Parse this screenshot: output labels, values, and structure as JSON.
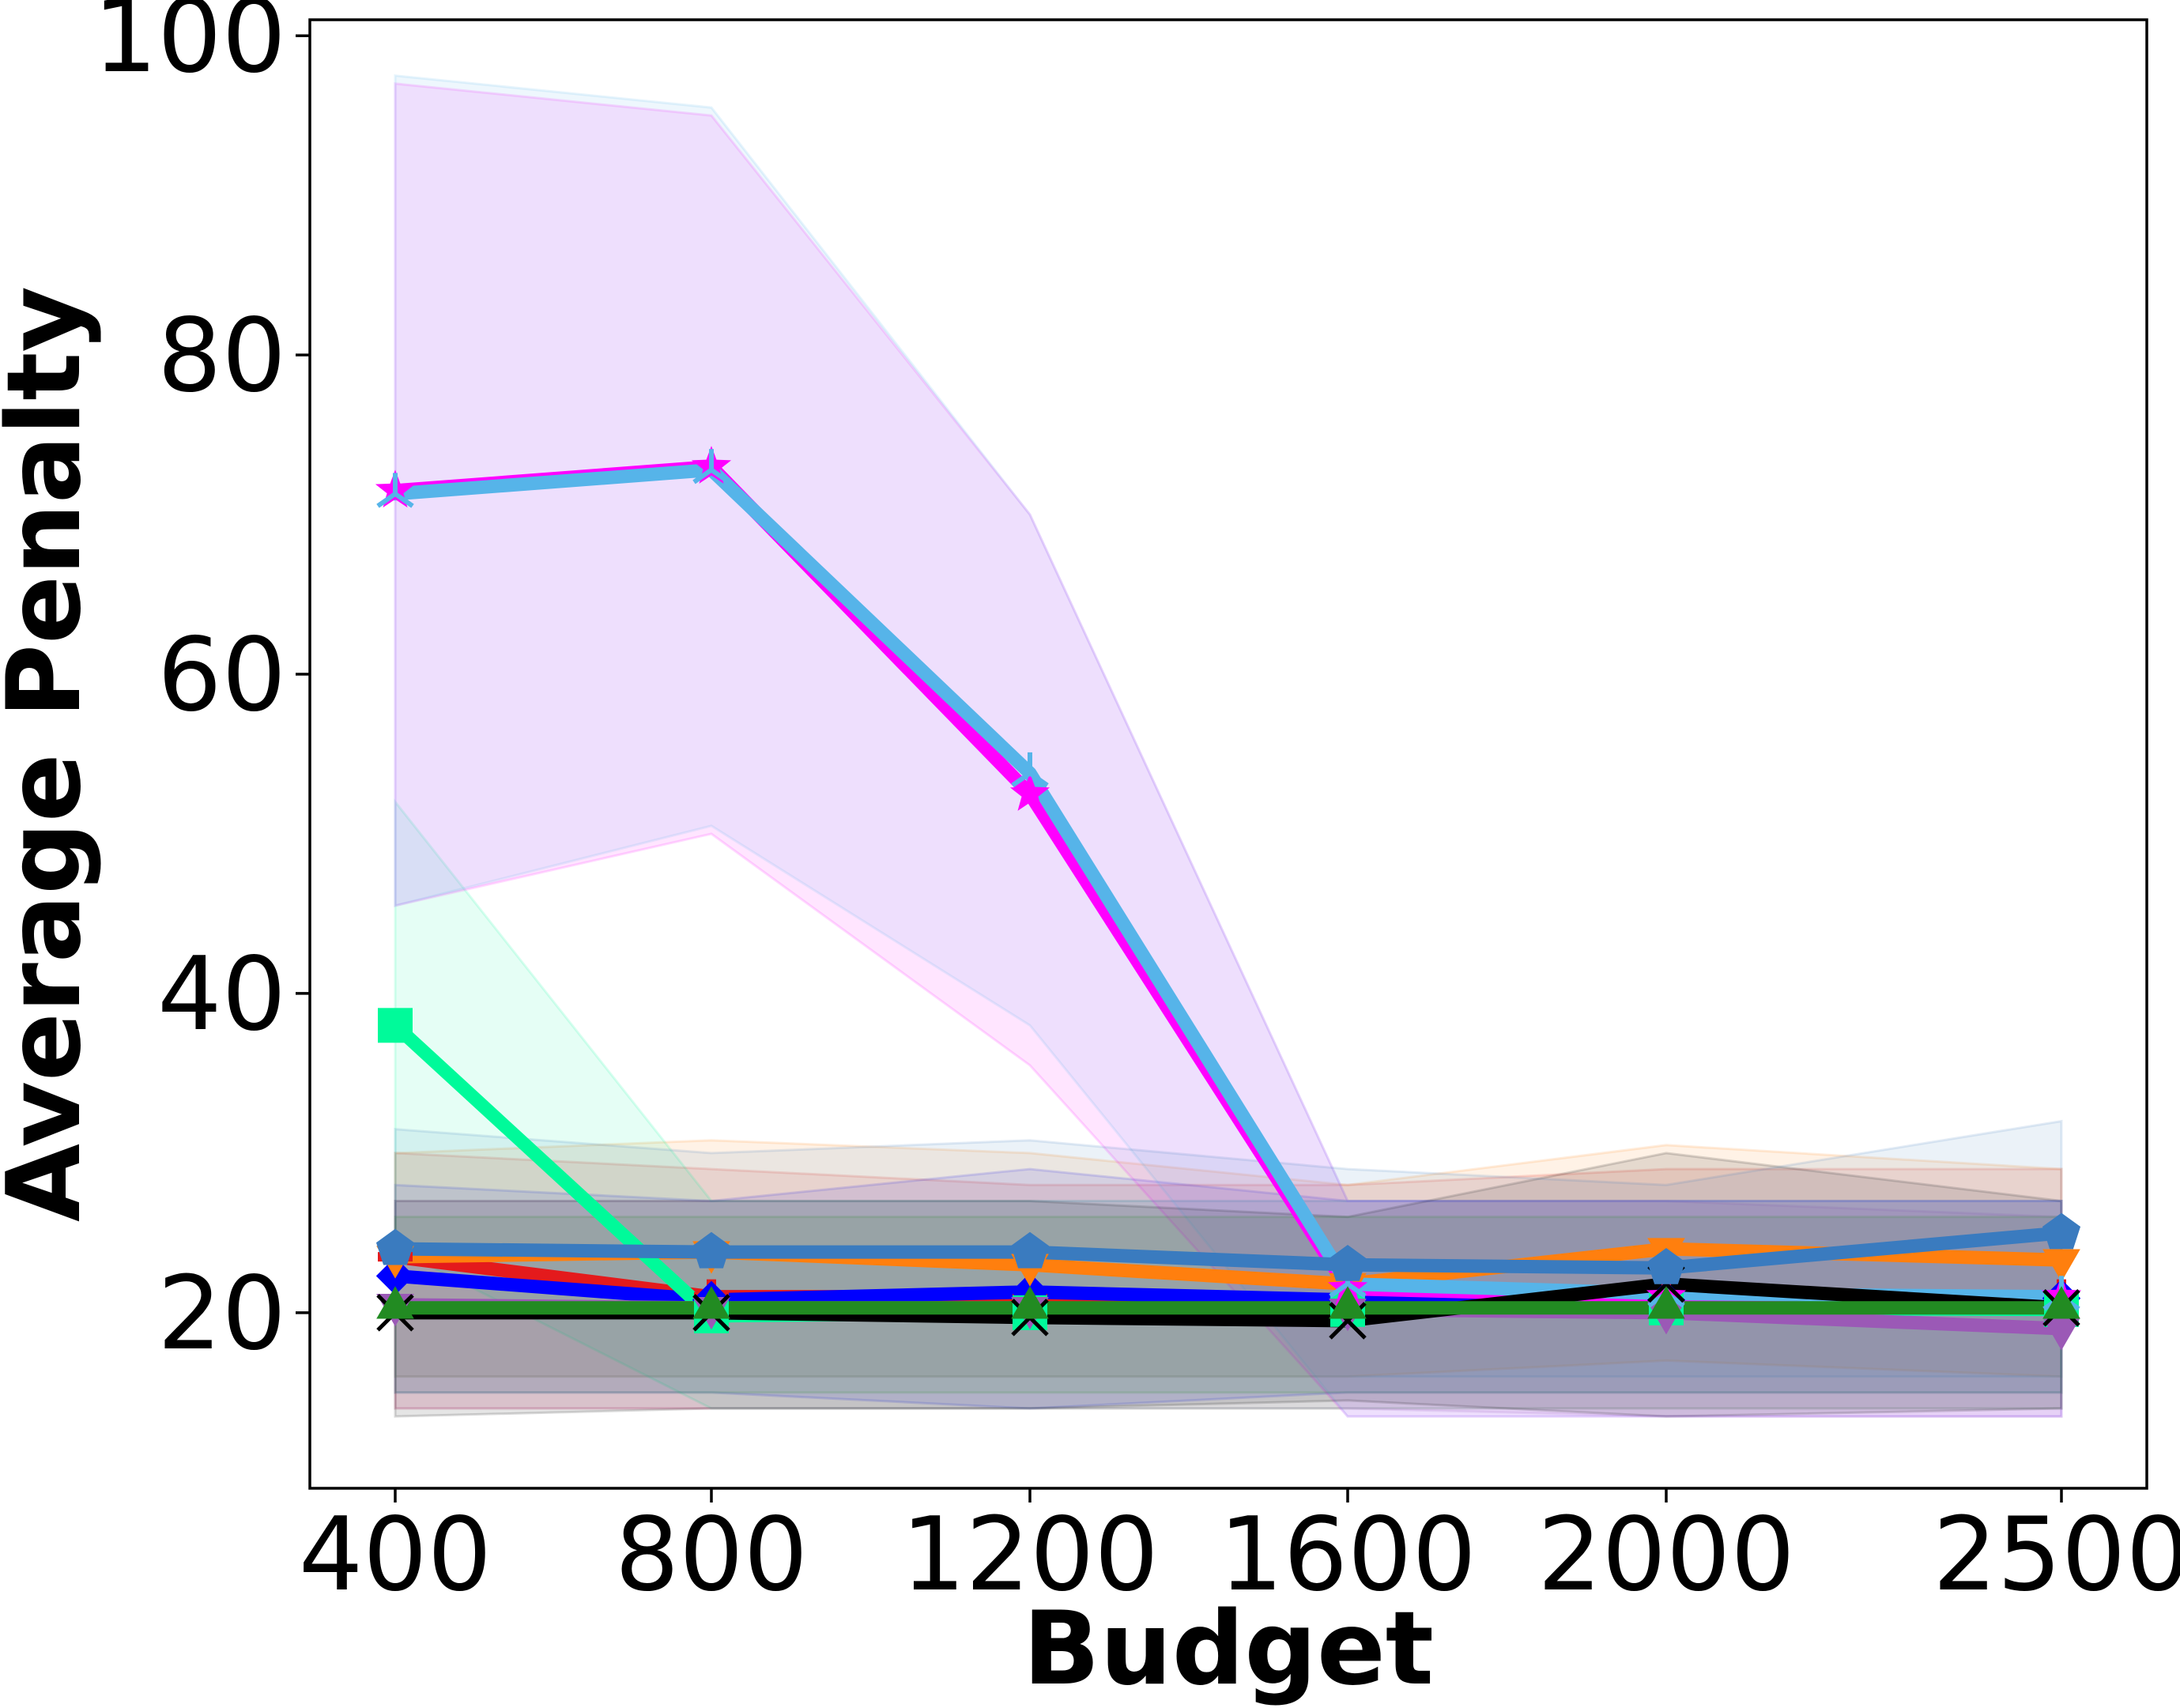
{
  "chart_data": {
    "type": "line",
    "title": "",
    "xlabel": "Budget",
    "ylabel": "Average Penalty",
    "x": [
      400,
      800,
      1200,
      1600,
      2000,
      2500
    ],
    "x_ticks": [
      "400",
      "800",
      "1200",
      "1600",
      "2000",
      "2500"
    ],
    "y_ticks": [
      "20",
      "40",
      "60",
      "80",
      "100"
    ],
    "ylim": [
      9,
      101
    ],
    "grid": false,
    "legend": "none",
    "series": [
      {
        "color": "#e41a1c",
        "marker": "cross",
        "values": [
          23.5,
          21.0,
          21.0,
          20.8,
          21.0,
          21.0
        ],
        "band_low": [
          14.0,
          14.0,
          14.0,
          14.0,
          14.0,
          14.0
        ],
        "band_high": [
          30.0,
          29.0,
          28.0,
          28.0,
          29.0,
          29.0
        ]
      },
      {
        "color": "#0000ff",
        "marker": "diamond",
        "values": [
          22.3,
          20.8,
          21.3,
          20.8,
          20.8,
          20.9
        ],
        "band_low": [
          15.0,
          15.0,
          14.0,
          15.0,
          15.0,
          15.0
        ],
        "band_high": [
          28.0,
          27.0,
          29.0,
          27.0,
          27.0,
          27.0
        ]
      },
      {
        "color": "#ff7f0e",
        "marker": "triangle-down",
        "values": [
          23.5,
          23.8,
          23.0,
          21.8,
          24.0,
          23.3
        ],
        "band_low": [
          16.0,
          16.0,
          16.0,
          16.0,
          17.0,
          16.0
        ],
        "band_high": [
          30.0,
          30.8,
          30.0,
          28.0,
          30.5,
          29.0
        ]
      },
      {
        "color": "#00fa9a",
        "marker": "square",
        "values": [
          38.0,
          19.8,
          20.0,
          20.2,
          20.3,
          20.2
        ],
        "band_low": [
          24.0,
          14.0,
          14.0,
          14.0,
          14.0,
          14.0
        ],
        "band_high": [
          52.0,
          27.0,
          27.0,
          27.0,
          27.0,
          27.0
        ]
      },
      {
        "color": "#9b59b6",
        "marker": "triangle-down",
        "values": [
          20.5,
          20.3,
          20.3,
          20.2,
          20.0,
          19.0
        ],
        "band_low": [
          14.0,
          14.0,
          14.0,
          14.0,
          13.5,
          13.5
        ],
        "band_high": [
          27.0,
          27.0,
          27.0,
          27.0,
          27.0,
          26.0
        ]
      },
      {
        "color": "#ff00ff",
        "marker": "star",
        "values": [
          71.5,
          73.0,
          52.5,
          21.5,
          21.0,
          21.0
        ],
        "band_low": [
          45.5,
          50.0,
          35.5,
          13.5,
          13.5,
          13.5
        ],
        "band_high": [
          97.0,
          95.0,
          70.0,
          27.0,
          27.0,
          27.0
        ]
      },
      {
        "color": "#56b4e9",
        "marker": "tri",
        "values": [
          71.3,
          72.8,
          53.8,
          21.8,
          21.2,
          21.0
        ],
        "band_low": [
          45.5,
          50.5,
          38.0,
          13.5,
          13.5,
          13.5
        ],
        "band_high": [
          97.5,
          95.5,
          70.0,
          27.0,
          27.0,
          27.0
        ]
      },
      {
        "color": "#000000",
        "marker": "x",
        "values": [
          20.0,
          20.0,
          19.7,
          19.5,
          21.8,
          20.3
        ],
        "band_low": [
          13.5,
          14.0,
          14.0,
          14.5,
          13.5,
          14.0
        ],
        "band_high": [
          27.0,
          27.0,
          27.0,
          26.0,
          30.0,
          27.0
        ]
      },
      {
        "color": "#3a7bbf",
        "marker": "pentagon",
        "values": [
          24.0,
          23.8,
          23.8,
          23.0,
          22.8,
          25.0
        ],
        "band_low": [
          16.0,
          16.0,
          16.0,
          16.0,
          16.0,
          16.0
        ],
        "band_high": [
          31.5,
          30.0,
          30.8,
          29.0,
          28.0,
          32.0
        ]
      },
      {
        "color": "#228b22",
        "marker": "triangle-up",
        "values": [
          20.3,
          20.3,
          20.3,
          20.3,
          20.3,
          20.3
        ],
        "band_low": [
          15.0,
          15.0,
          15.0,
          15.0,
          15.0,
          15.0
        ],
        "band_high": [
          26.0,
          26.0,
          26.0,
          26.0,
          26.0,
          26.0
        ]
      }
    ]
  }
}
